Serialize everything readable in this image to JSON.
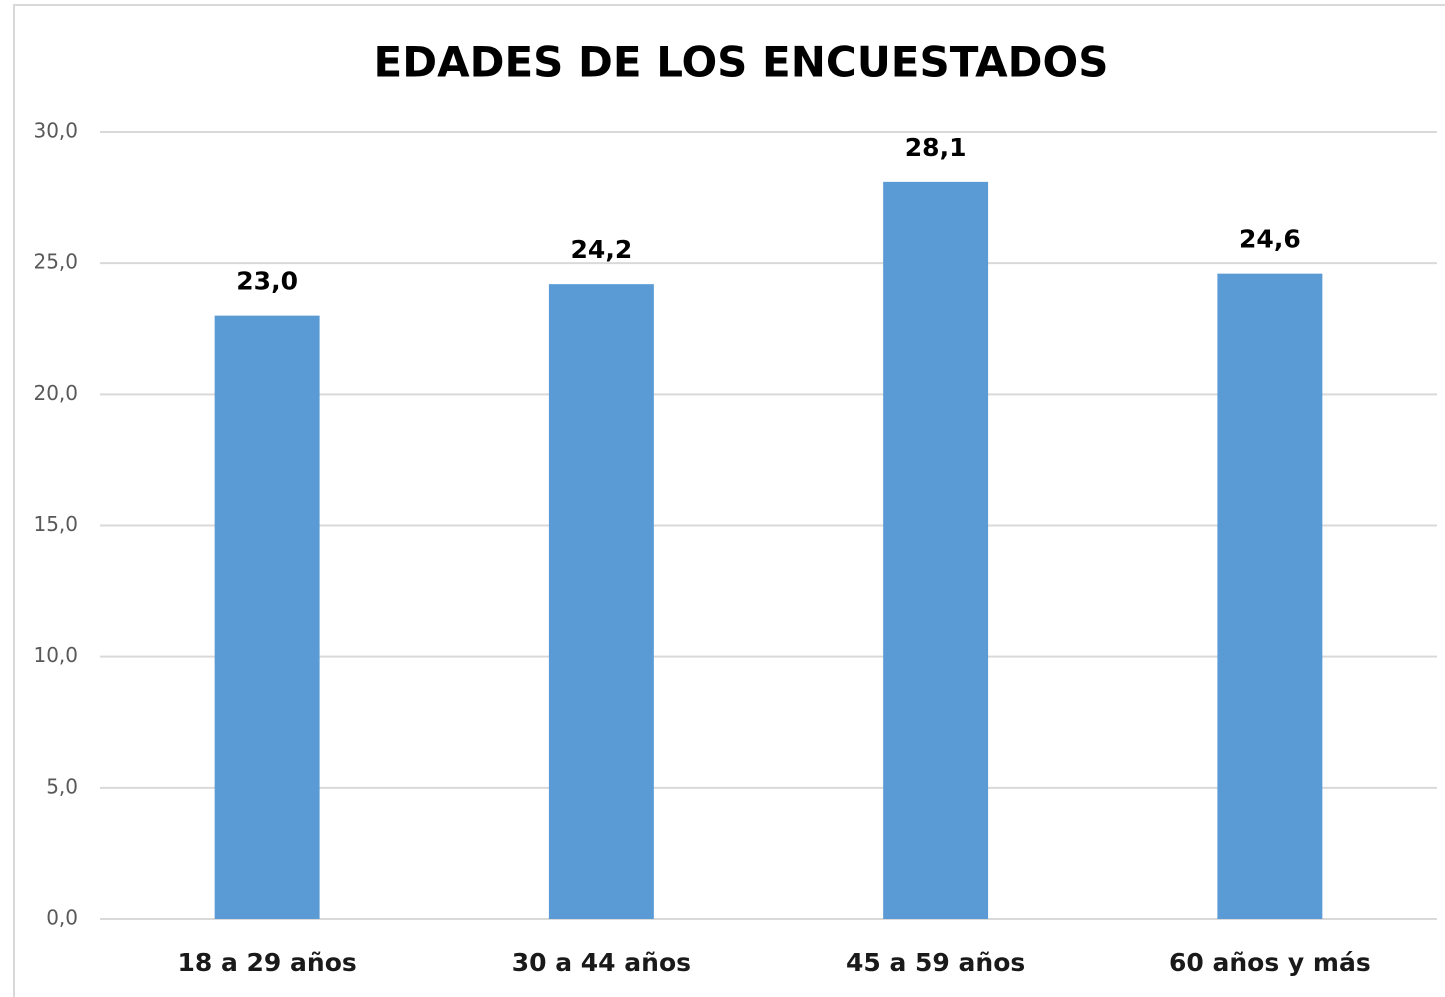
{
  "chart_data": {
    "type": "bar",
    "title": "EDADES DE LOS ENCUESTADOS",
    "categories": [
      "18 a 29 años",
      "30 a 44 años",
      "45 a 59 años",
      "60 años y más"
    ],
    "values": [
      23.0,
      24.2,
      28.1,
      24.6
    ],
    "value_labels": [
      "23,0",
      "24,2",
      "28,1",
      "24,6"
    ],
    "color": "#5b9bd5",
    "ylim": [
      0,
      30
    ],
    "yticks": [
      {
        "value": 0,
        "label": "0,0"
      },
      {
        "value": 5,
        "label": "5,0"
      },
      {
        "value": 10,
        "label": "10,0"
      },
      {
        "value": 15,
        "label": "15,0"
      },
      {
        "value": 20,
        "label": "20,0"
      },
      {
        "value": 25,
        "label": "25,0"
      },
      {
        "value": 30,
        "label": "30,0"
      }
    ],
    "grid": true
  }
}
